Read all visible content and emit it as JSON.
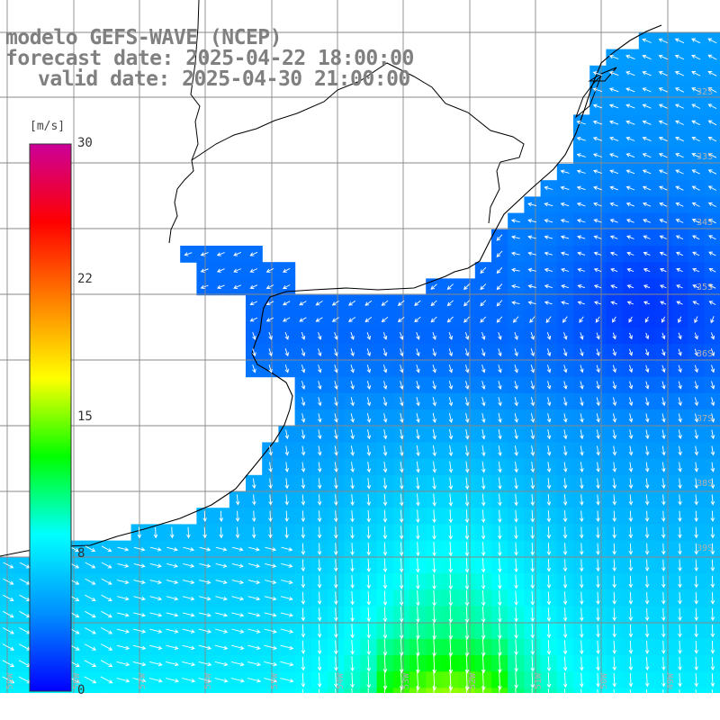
{
  "title": {
    "model": "modelo GEFS-WAVE (NCEP)",
    "forecast": "forecast date: 2025-04-22 18:00:00",
    "valid": "valid date: 2025-04-30 21:00:00"
  },
  "colorbar": {
    "unit": "[m/s]",
    "ticks": [
      {
        "value": 30,
        "label": "30"
      },
      {
        "value": 22,
        "label": "22"
      },
      {
        "value": 15,
        "label": "15"
      },
      {
        "value": 8,
        "label": "8"
      },
      {
        "value": 0,
        "label": "0"
      }
    ],
    "range": [
      0,
      30
    ],
    "stops": [
      "#0000ff",
      "#0090ff",
      "#00ffff",
      "#00ff00",
      "#ffff00",
      "#ff8000",
      "#ff0000",
      "#cc0099"
    ]
  },
  "lat_labels": [
    "32S",
    "33S",
    "34S",
    "35S",
    "36S",
    "37S",
    "38S",
    "39S"
  ],
  "lon_labels": [
    "59W",
    "58W",
    "57W",
    "56W",
    "55W",
    "54W",
    "53W",
    "52W",
    "51W",
    "50W",
    "49W"
  ],
  "field": {
    "variable": "wind speed",
    "arrow_color": "#ffffff",
    "coast_color": "#000000",
    "grid_color": "#888888"
  }
}
